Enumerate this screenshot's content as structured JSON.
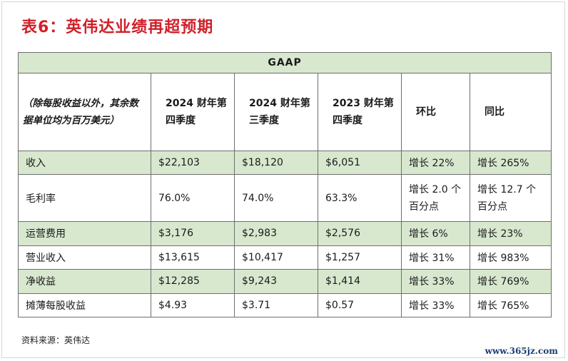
{
  "title": "表6：英伟达业绩再超预期",
  "table": {
    "group_header": "GAAP",
    "note_header": "（除每股收益以外，其余数据单位均为百万美元）",
    "columns": [
      "2024 财年第四季度",
      "2024 财年第三季度",
      "2023 财年第四季度",
      "环比",
      "同比"
    ],
    "rows": [
      {
        "label": "收入",
        "values": [
          "$22,103",
          "$18,120",
          "$6,051",
          "增长 22%",
          "增长 265%"
        ]
      },
      {
        "label": "毛利率",
        "values": [
          "76.0%",
          "74.0%",
          "63.3%",
          "增长 2.0 个百分点",
          "增长 12.7 个百分点"
        ]
      },
      {
        "label": "运营费用",
        "values": [
          "$3,176",
          "$2,983",
          "$2,576",
          "增长 6%",
          "增长 23%"
        ]
      },
      {
        "label": "营业收入",
        "values": [
          "$13,615",
          "$10,417",
          "$1,257",
          "增长 31%",
          "增长 983%"
        ]
      },
      {
        "label": "净收益",
        "values": [
          "$12,285",
          "$9,243",
          "$1,414",
          "增长 33%",
          "增长 769%"
        ]
      },
      {
        "label": "摊薄每股收益",
        "values": [
          "$4.93",
          "$3.71",
          "$0.57",
          "增长 33%",
          "增长 765%"
        ]
      }
    ]
  },
  "source": "资料来源：英伟达",
  "watermark": "www.365jz.com"
}
